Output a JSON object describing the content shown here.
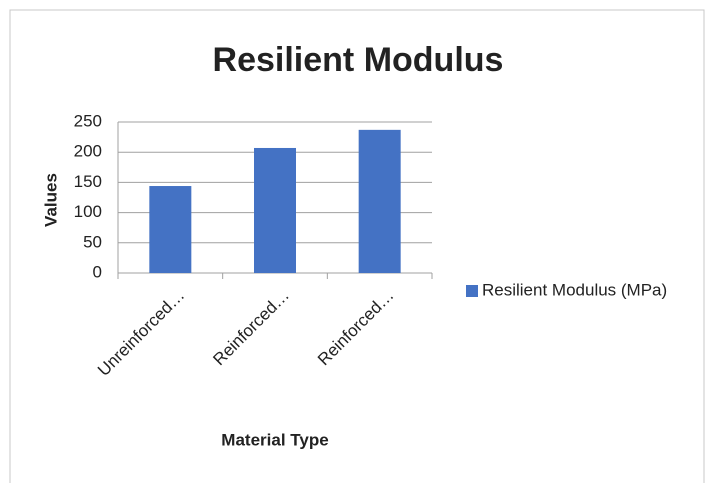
{
  "chart_data": {
    "type": "bar",
    "title": "Resilient Modulus",
    "categories": [
      "Unreinforced…",
      "Reinforced…",
      "Reinforced…"
    ],
    "series": [
      {
        "name": "Resilient Modulus (MPa)",
        "color": "#4472c4",
        "values": [
          144,
          207,
          237
        ]
      }
    ],
    "x_label": "Material Type",
    "y_label": "Values",
    "ylim": [
      0,
      250
    ],
    "yticks": [
      0,
      50,
      100,
      150,
      200,
      250
    ],
    "grid": true,
    "legend": "right"
  }
}
